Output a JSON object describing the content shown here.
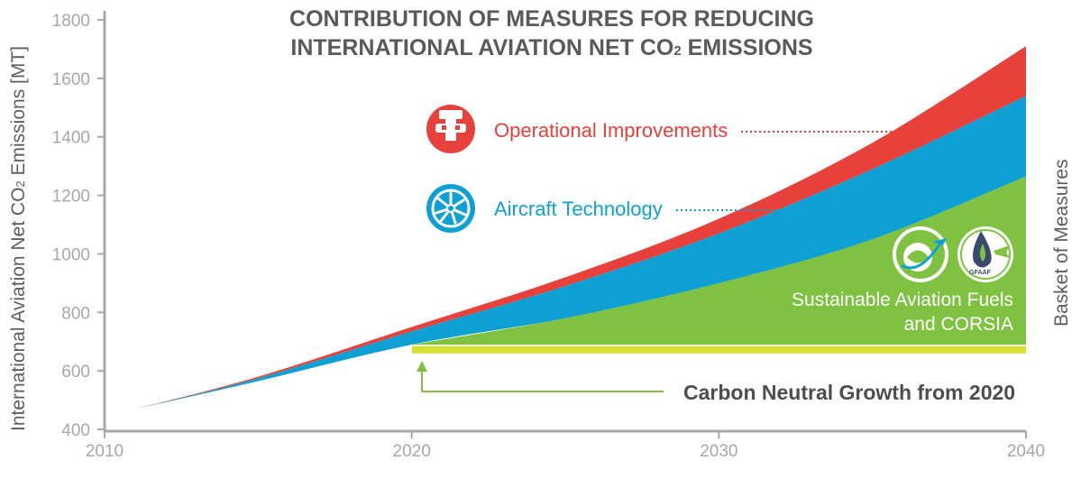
{
  "chart_data": {
    "type": "area",
    "title_line1": "CONTRIBUTION OF MEASURES FOR REDUCING",
    "title_line2_pre": "INTERNATIONAL AVIATION NET CO",
    "title_sub": "2",
    "title_line2_post": " EMISSIONS",
    "ylabel_pre": "International Aviation Net CO",
    "ylabel_sub": "2",
    "ylabel_post": " Emissions [MT]",
    "right_label": "Basket of Measures",
    "x_ticks": [
      "2010",
      "2020",
      "2030",
      "2040"
    ],
    "y_ticks": [
      "400",
      "600",
      "800",
      "1000",
      "1200",
      "1400",
      "1600",
      "1800"
    ],
    "xlim": [
      2010,
      2040
    ],
    "ylim": [
      400,
      1800
    ],
    "x": [
      2011,
      2015,
      2020,
      2025,
      2030,
      2035,
      2040
    ],
    "series": [
      {
        "name": "Operational Improvements",
        "color": "#e8403a",
        "upper": [
          470,
          580,
          750,
          920,
          1120,
          1380,
          1710
        ],
        "lower": [
          470,
          575,
          735,
          890,
          1070,
          1290,
          1540
        ]
      },
      {
        "name": "Aircraft Technology",
        "color": "#0ea0d2",
        "upper": [
          470,
          575,
          735,
          890,
          1070,
          1290,
          1540
        ],
        "lower": [
          470,
          565,
          690,
          780,
          900,
          1050,
          1265
        ]
      },
      {
        "name": "Sustainable Aviation Fuels and CORSIA",
        "color": "#7fc241",
        "upper": [
          null,
          null,
          690,
          780,
          900,
          1050,
          1265
        ],
        "lower": [
          null,
          null,
          690,
          690,
          690,
          690,
          690
        ]
      },
      {
        "color": "#d6e031",
        "upper": [
          null,
          null,
          685,
          685,
          685,
          685,
          685
        ],
        "lower": [
          null,
          null,
          660,
          660,
          660,
          660,
          660
        ]
      }
    ],
    "label_operational": "Operational Improvements",
    "label_aircraft": "Aircraft Technology",
    "label_saf_line1": "Sustainable Aviation Fuels",
    "label_saf_line2": "and CORSIA",
    "label_cng": "Carbon Neutral Growth from 2020",
    "logo_text_gfaaf": "GFAAF"
  }
}
